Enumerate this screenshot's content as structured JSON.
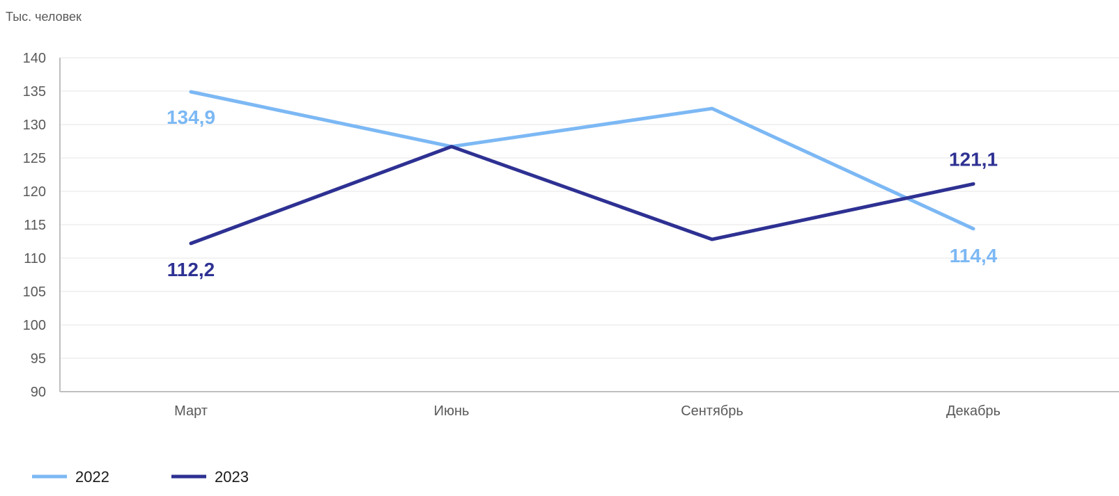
{
  "chart_data": {
    "type": "line",
    "unit_label": "Тыс. человек",
    "categories": [
      "Март",
      "Июнь",
      "Сентябрь",
      "Декабрь"
    ],
    "ylim": [
      90,
      140
    ],
    "yticks": [
      90,
      95,
      100,
      105,
      110,
      115,
      120,
      125,
      130,
      135,
      140
    ],
    "grid": true,
    "legend_position": "bottom-left",
    "series": [
      {
        "name": "2022",
        "color": "#7cb8f4",
        "values": [
          134.9,
          126.7,
          132.4,
          114.4
        ],
        "labels": [
          "134,9",
          "",
          "",
          "114,4"
        ]
      },
      {
        "name": "2023",
        "color": "#2e3192",
        "values": [
          112.2,
          126.7,
          112.8,
          121.1
        ],
        "labels": [
          "112,2",
          "",
          "",
          "121,1"
        ]
      }
    ]
  }
}
